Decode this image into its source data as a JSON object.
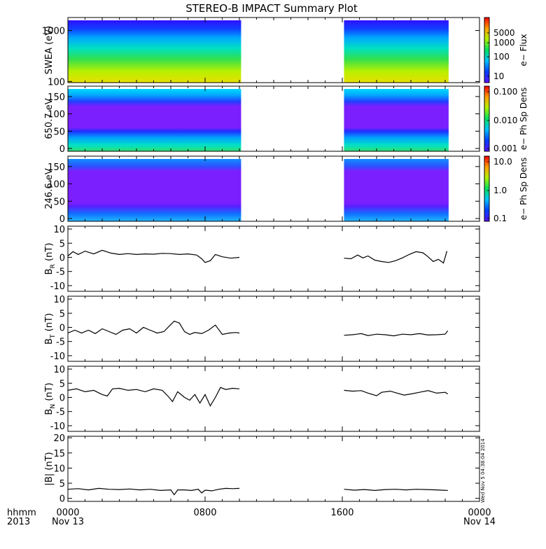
{
  "title": "STEREO-B IMPACT Summary Plot",
  "colors": {
    "axis": "#000000",
    "line": "#000000",
    "fill_purple": "#7b1fff"
  },
  "gutter": {
    "hhmm": "hhmm",
    "year": "2013"
  },
  "x_axis": {
    "tick_hours": [
      0,
      8,
      16,
      24
    ],
    "tick_labels": [
      "0000",
      "0800",
      "1600",
      "0000"
    ],
    "date_labels": [
      "Nov 13",
      "",
      "",
      "Nov 14"
    ]
  },
  "timestamp": "Wed Nov  5 04:38:04 2014",
  "chart_data": [
    {
      "type": "heatmap",
      "id": "swea",
      "ylabel": "SWEA (eV)",
      "yscale": "log",
      "ylim": [
        95,
        1800
      ],
      "yticks": [
        {
          "v": 1000,
          "label": "1000"
        },
        {
          "v": 100,
          "label": "100"
        }
      ],
      "data_segments_hours": [
        [
          0,
          10.1
        ],
        [
          16.1,
          22.2
        ]
      ],
      "colorbar": {
        "label": "e− Flux",
        "ticks": [
          "5000",
          "1000",
          "100",
          "10"
        ],
        "scale": "log"
      }
    },
    {
      "type": "heatmap",
      "id": "pad650",
      "ylabel": "650.7 eV",
      "ylim": [
        -8,
        180
      ],
      "yticks": [
        {
          "v": 150,
          "label": "150"
        },
        {
          "v": 100,
          "label": "100"
        },
        {
          "v": 50,
          "label": "50"
        },
        {
          "v": 0,
          "label": "0"
        }
      ],
      "data_segments_hours": [
        [
          0,
          10.1
        ],
        [
          16.1,
          22.2
        ]
      ],
      "colorbar": {
        "label": "e− Ph Sp Dens",
        "ticks": [
          "0.100",
          "0.010",
          "0.001"
        ],
        "scale": "log"
      }
    },
    {
      "type": "heatmap",
      "id": "pad246",
      "ylabel": "246.6 eV",
      "ylim": [
        -8,
        180
      ],
      "yticks": [
        {
          "v": 150,
          "label": "150"
        },
        {
          "v": 100,
          "label": "100"
        },
        {
          "v": 50,
          "label": "50"
        },
        {
          "v": 0,
          "label": "0"
        }
      ],
      "data_segments_hours": [
        [
          0,
          10.1
        ],
        [
          16.1,
          22.2
        ]
      ],
      "colorbar": {
        "label": "e− Ph Sp Dens",
        "ticks": [
          "10.0",
          "1.0",
          "0.1"
        ],
        "scale": "log"
      }
    },
    {
      "type": "line",
      "id": "br",
      "ylabel": "B",
      "ysub": "R",
      "yunit": "(nT)",
      "ylim": [
        -12,
        11
      ],
      "yticks": [
        10,
        5,
        0,
        -5,
        -10
      ],
      "series": [
        {
          "x": [
            0,
            0.3,
            0.6,
            1.0,
            1.5,
            2.0,
            2.5,
            3.0,
            3.5,
            4.0,
            4.5,
            5.0,
            5.5,
            6.0,
            6.5,
            7.0,
            7.5,
            7.8,
            8.0,
            8.3,
            8.6,
            9.0,
            9.5,
            10.0
          ],
          "y": [
            0.5,
            2.0,
            1.0,
            2.2,
            1.2,
            2.5,
            1.5,
            1.0,
            1.3,
            1.0,
            1.2,
            1.1,
            1.4,
            1.3,
            1.0,
            1.2,
            0.8,
            -0.5,
            -1.8,
            -1.2,
            1.0,
            0.2,
            -0.3,
            0.0
          ]
        },
        {
          "x": [
            16.1,
            16.5,
            16.9,
            17.2,
            17.5,
            17.9,
            18.3,
            18.7,
            19.1,
            19.5,
            19.9,
            20.3,
            20.7,
            21.0,
            21.3,
            21.6,
            21.9,
            22.1
          ],
          "y": [
            -0.3,
            -0.5,
            0.8,
            -0.2,
            0.5,
            -1.0,
            -1.5,
            -1.8,
            -1.2,
            -0.2,
            1.0,
            2.0,
            1.6,
            0.2,
            -1.5,
            -0.7,
            -2.0,
            2.2
          ]
        }
      ]
    },
    {
      "type": "line",
      "id": "bt",
      "ylabel": "B",
      "ysub": "T",
      "yunit": "(nT)",
      "ylim": [
        -12,
        11
      ],
      "yticks": [
        10,
        5,
        0,
        -5,
        -10
      ],
      "series": [
        {
          "x": [
            0,
            0.4,
            0.8,
            1.2,
            1.6,
            2.0,
            2.4,
            2.8,
            3.2,
            3.6,
            4.0,
            4.4,
            4.8,
            5.2,
            5.6,
            6.0,
            6.2,
            6.5,
            6.8,
            7.1,
            7.4,
            7.8,
            8.2,
            8.6,
            9.0,
            9.4,
            9.8,
            10.0
          ],
          "y": [
            -2.0,
            -1.0,
            -2.0,
            -1.0,
            -2.2,
            -0.5,
            -1.5,
            -2.5,
            -1.0,
            -0.5,
            -2.0,
            0.0,
            -1.0,
            -2.0,
            -1.5,
            1.0,
            2.2,
            1.5,
            -1.5,
            -2.5,
            -1.8,
            -2.2,
            -1.0,
            0.8,
            -2.5,
            -2.0,
            -1.8,
            -2.0
          ]
        },
        {
          "x": [
            16.1,
            16.6,
            17.1,
            17.5,
            18.0,
            18.5,
            19.0,
            19.5,
            20.0,
            20.5,
            21.0,
            21.5,
            22.0,
            22.15
          ],
          "y": [
            -2.8,
            -2.6,
            -2.2,
            -2.9,
            -2.4,
            -2.6,
            -3.0,
            -2.4,
            -2.6,
            -2.2,
            -2.7,
            -2.6,
            -2.4,
            -1.2
          ]
        }
      ]
    },
    {
      "type": "line",
      "id": "bn",
      "ylabel": "B",
      "ysub": "N",
      "yunit": "(nT)",
      "ylim": [
        -12,
        11
      ],
      "yticks": [
        10,
        5,
        0,
        -5,
        -10
      ],
      "series": [
        {
          "x": [
            0,
            0.5,
            1.0,
            1.5,
            2.0,
            2.3,
            2.6,
            3.0,
            3.5,
            4.0,
            4.5,
            5.0,
            5.5,
            5.9,
            6.1,
            6.4,
            6.8,
            7.1,
            7.4,
            7.7,
            8.0,
            8.3,
            8.6,
            8.9,
            9.2,
            9.6,
            10.0
          ],
          "y": [
            2.5,
            3.0,
            2.0,
            2.5,
            1.0,
            0.5,
            3.0,
            3.2,
            2.5,
            2.8,
            2.0,
            3.0,
            2.5,
            0.0,
            -1.5,
            2.0,
            0.0,
            -1.0,
            1.0,
            -2.0,
            1.0,
            -3.0,
            0.0,
            3.5,
            2.8,
            3.2,
            3.0
          ]
        },
        {
          "x": [
            16.1,
            16.6,
            17.1,
            17.5,
            18.0,
            18.3,
            18.8,
            19.2,
            19.6,
            20.0,
            20.5,
            21.0,
            21.5,
            22.0,
            22.15
          ],
          "y": [
            2.5,
            2.2,
            2.4,
            1.5,
            0.6,
            1.8,
            2.2,
            1.5,
            0.8,
            1.2,
            1.8,
            2.4,
            1.5,
            1.8,
            1.2
          ]
        }
      ]
    },
    {
      "type": "line",
      "id": "bmag",
      "ylabel": "|B|",
      "yunit": "(nT)",
      "ylim": [
        -1,
        20.5
      ],
      "yticks": [
        20,
        15,
        10,
        5,
        0
      ],
      "series": [
        {
          "x": [
            0,
            0.6,
            1.2,
            1.8,
            2.4,
            3.0,
            3.6,
            4.2,
            4.8,
            5.4,
            6.0,
            6.2,
            6.4,
            6.8,
            7.2,
            7.6,
            7.8,
            8.0,
            8.4,
            8.8,
            9.2,
            9.6,
            10.0
          ],
          "y": [
            3.0,
            3.2,
            2.8,
            3.3,
            3.0,
            2.9,
            3.1,
            2.8,
            3.0,
            2.6,
            2.8,
            1.2,
            2.8,
            2.8,
            2.6,
            3.0,
            1.8,
            2.7,
            2.5,
            3.0,
            3.3,
            3.2,
            3.3
          ]
        },
        {
          "x": [
            16.1,
            16.7,
            17.3,
            17.9,
            18.5,
            19.1,
            19.7,
            20.3,
            20.9,
            21.5,
            22.15
          ],
          "y": [
            3.0,
            2.7,
            2.9,
            2.6,
            2.9,
            3.0,
            2.8,
            3.0,
            2.9,
            2.8,
            2.6
          ]
        }
      ]
    }
  ]
}
